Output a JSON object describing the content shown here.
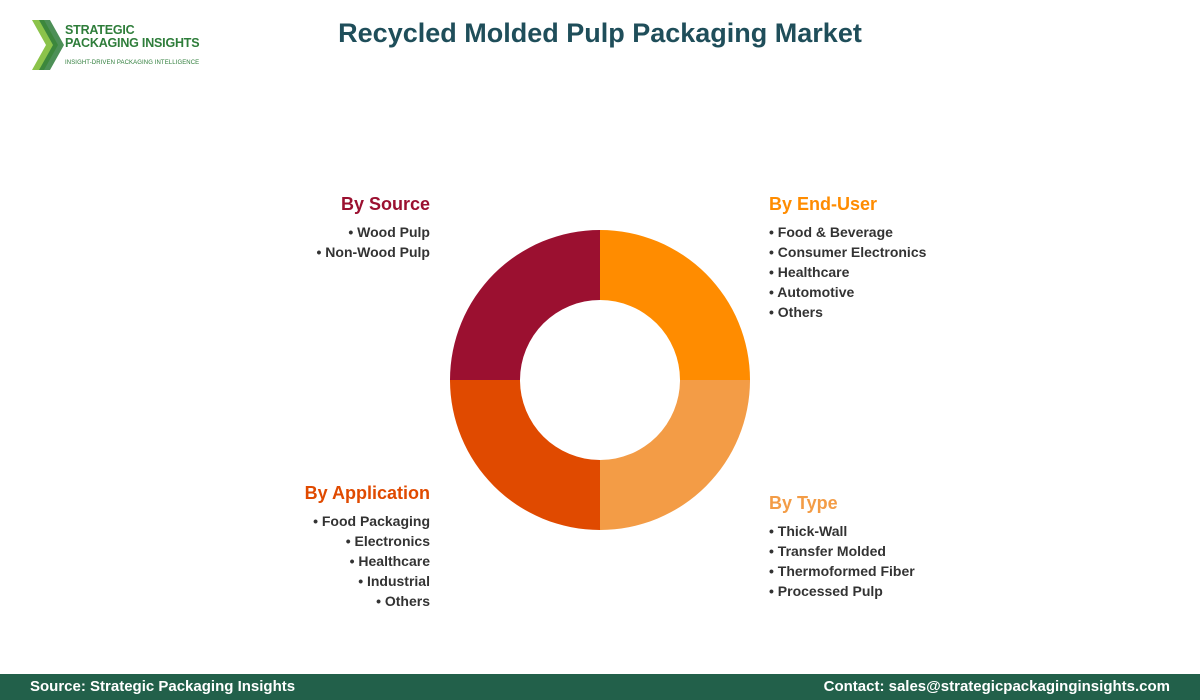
{
  "logo": {
    "line1": "STRATEGIC",
    "line2": "PACKAGING INSIGHTS",
    "tagline": "INSIGHT-DRIVEN PACKAGING INTELLIGENCE"
  },
  "title": "Recycled Molded Pulp Packaging Market",
  "colors": {
    "title": "#1f4e5a",
    "by_source": "#9b1030",
    "by_end_user": "#ff8c00",
    "by_type": "#f39c46",
    "by_application": "#e04a00",
    "footer_bg": "#22604a"
  },
  "segments": {
    "source": {
      "title": "By Source",
      "items": [
        "Wood Pulp",
        "Non-Wood Pulp"
      ]
    },
    "end_user": {
      "title": "By End-User",
      "items": [
        "Food & Beverage",
        "Consumer Electronics",
        "Healthcare",
        "Automotive",
        "Others"
      ]
    },
    "application": {
      "title": "By Application",
      "items": [
        "Food Packaging",
        "Electronics",
        "Healthcare",
        "Industrial",
        "Others"
      ]
    },
    "type": {
      "title": "By Type",
      "items": [
        "Thick-Wall",
        "Transfer Molded",
        "Thermoformed Fiber",
        "Processed Pulp"
      ]
    }
  },
  "footer": {
    "source": "Source: Strategic Packaging Insights",
    "contact": "Contact: sales@strategicpackaginginsights.com"
  }
}
